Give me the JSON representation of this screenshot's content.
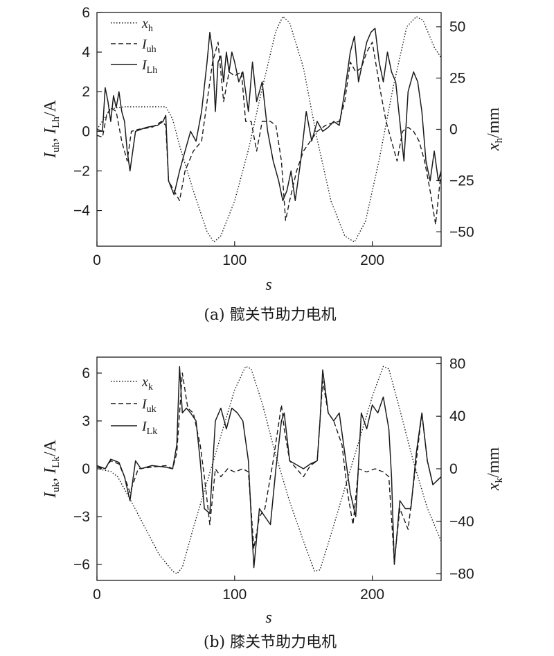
{
  "chart_data": [
    {
      "type": "line",
      "caption": "(a) 髋关节助力电机",
      "xlabel": "s",
      "ylabel_left": "I_uh, I_Lh/A",
      "ylabel_right": "x_h/mm",
      "xlim": [
        0,
        250
      ],
      "ylim_left": [
        -5.8,
        6
      ],
      "ylim_right": [
        -57,
        57
      ],
      "xticks": [
        0,
        100,
        200
      ],
      "yticks_left": [
        -4,
        -2,
        0,
        2,
        4,
        6
      ],
      "yticks_right": [
        -50,
        -25,
        0,
        25,
        50
      ],
      "legend_position": "top-left",
      "series": [
        {
          "name": "x_h",
          "axis": "right",
          "style": "dotted",
          "x": [
            0,
            5,
            10,
            20,
            30,
            40,
            50,
            55,
            60,
            70,
            80,
            85,
            90,
            100,
            110,
            120,
            130,
            135,
            140,
            150,
            160,
            170,
            180,
            187,
            195,
            205,
            215,
            225,
            232,
            237,
            245,
            250
          ],
          "y": [
            0,
            5,
            10,
            11,
            11,
            11,
            11,
            5,
            -8,
            -30,
            -50,
            -55,
            -52,
            -35,
            -10,
            20,
            48,
            55,
            52,
            30,
            -5,
            -35,
            -52,
            -55,
            -45,
            -15,
            20,
            50,
            55,
            53,
            40,
            35
          ]
        },
        {
          "name": "I_uh",
          "axis": "left",
          "style": "dashed",
          "x": [
            0,
            4,
            7,
            10,
            14,
            18,
            22,
            25,
            30,
            40,
            47,
            50,
            52,
            56,
            60,
            64,
            70,
            76,
            80,
            84,
            88,
            92,
            96,
            100,
            105,
            108,
            112,
            116,
            120,
            126,
            130,
            134,
            137,
            140,
            145,
            150,
            155,
            160,
            166,
            170,
            176,
            180,
            184,
            188,
            192,
            196,
            200,
            206,
            210,
            214,
            218,
            222,
            226,
            230,
            234,
            238,
            242,
            246,
            250
          ],
          "y": [
            -0.2,
            -0.3,
            0.8,
            1.2,
            1.0,
            -0.5,
            -1.5,
            0.0,
            0.1,
            0.2,
            0.5,
            0.3,
            -2.5,
            -3.0,
            -3.5,
            -2.0,
            -1.0,
            -0.5,
            1.5,
            3.5,
            4.5,
            1.5,
            3.0,
            2.8,
            3.0,
            0.5,
            0.5,
            -1.0,
            0.5,
            0.5,
            0.3,
            -1.5,
            -4.5,
            -3.5,
            -2.0,
            -1.0,
            -0.5,
            0.0,
            0.3,
            0.4,
            0.5,
            1.5,
            3.5,
            3.0,
            3.2,
            4.0,
            4.5,
            2.0,
            0.5,
            -0.5,
            -1.5,
            0.0,
            0.2,
            0.0,
            -0.5,
            -1.5,
            -3.0,
            -4.7,
            -2.0
          ]
        },
        {
          "name": "I_Lh",
          "axis": "left",
          "style": "solid",
          "x": [
            0,
            4,
            6,
            8,
            10,
            12,
            14,
            16,
            18,
            20,
            22,
            24,
            28,
            36,
            44,
            48,
            50,
            52,
            56,
            60,
            64,
            68,
            72,
            76,
            80,
            82,
            84,
            86,
            88,
            90,
            92,
            94,
            96,
            98,
            100,
            103,
            106,
            110,
            113,
            116,
            120,
            124,
            128,
            132,
            135,
            138,
            141,
            144,
            148,
            152,
            156,
            160,
            164,
            168,
            172,
            176,
            180,
            184,
            187,
            190,
            193,
            196,
            199,
            202,
            205,
            208,
            211,
            214,
            217,
            220,
            223,
            226,
            230,
            233,
            236,
            239,
            242,
            245,
            248,
            250
          ],
          "y": [
            0.1,
            0.0,
            2.2,
            1.5,
            0.5,
            1.8,
            1.2,
            2.0,
            1.0,
            0.5,
            -1.0,
            -2.0,
            0.0,
            0.2,
            0.3,
            0.5,
            0.8,
            -2.5,
            -3.2,
            -2.0,
            -1.0,
            0.0,
            -0.5,
            1.0,
            3.5,
            5.0,
            4.0,
            1.0,
            3.5,
            3.8,
            2.5,
            4.0,
            3.0,
            4.0,
            3.5,
            2.5,
            3.0,
            1.0,
            3.5,
            1.5,
            2.5,
            0.0,
            -1.5,
            -2.5,
            -3.5,
            -3.0,
            -2.0,
            -3.5,
            -1.5,
            1.0,
            -0.5,
            0.5,
            0.0,
            0.2,
            0.5,
            0.3,
            2.0,
            4.0,
            4.8,
            2.5,
            3.5,
            4.5,
            5.0,
            5.2,
            3.5,
            2.5,
            4.0,
            3.0,
            2.5,
            0.5,
            -1.5,
            2.0,
            3.0,
            2.5,
            1.0,
            -1.5,
            -2.5,
            -1.0,
            -2.5,
            -2.0
          ]
        }
      ]
    },
    {
      "type": "line",
      "caption": "(b) 膝关节助力电机",
      "xlabel": "s",
      "ylabel_left": "I_uk, I_Lk/A",
      "ylabel_right": "x_k/mm",
      "xlim": [
        0,
        250
      ],
      "ylim_left": [
        -7,
        7
      ],
      "ylim_right": [
        -85,
        85
      ],
      "xticks": [
        0,
        100,
        200
      ],
      "yticks_left": [
        -6,
        -3,
        0,
        3,
        6
      ],
      "yticks_right": [
        -80,
        -40,
        0,
        40,
        80
      ],
      "legend_position": "top-left",
      "series": [
        {
          "name": "x_k",
          "axis": "right",
          "style": "dotted",
          "x": [
            0,
            10,
            15,
            25,
            35,
            45,
            55,
            58,
            62,
            70,
            80,
            90,
            100,
            108,
            112,
            120,
            130,
            140,
            150,
            158,
            162,
            170,
            180,
            190,
            200,
            208,
            212,
            220,
            230,
            240,
            250
          ],
          "y": [
            0,
            -2,
            -6,
            -25,
            -45,
            -65,
            -78,
            -80,
            -75,
            -45,
            -10,
            25,
            60,
            78,
            76,
            50,
            10,
            -25,
            -55,
            -78,
            -77,
            -50,
            -15,
            20,
            55,
            78,
            76,
            45,
            5,
            -30,
            -55
          ]
        },
        {
          "name": "I_uk",
          "axis": "left",
          "style": "dashed",
          "x": [
            0,
            6,
            10,
            16,
            20,
            24,
            30,
            40,
            50,
            55,
            58,
            62,
            66,
            70,
            75,
            78,
            82,
            86,
            90,
            95,
            100,
            106,
            110,
            114,
            118,
            122,
            128,
            134,
            136,
            140,
            150,
            155,
            160,
            164,
            168,
            172,
            178,
            182,
            186,
            190,
            196,
            202,
            208,
            212,
            216,
            220,
            226,
            232,
            236,
            240,
            244,
            250
          ],
          "y": [
            0.1,
            0.0,
            0.5,
            0.3,
            -0.5,
            -1.5,
            0.0,
            0.1,
            0.2,
            0.0,
            1.0,
            6.0,
            3.8,
            3.5,
            1.5,
            -0.5,
            -3.5,
            0.0,
            -0.5,
            0.0,
            -0.2,
            0.0,
            -0.2,
            -5.0,
            -3.0,
            -2.5,
            0.5,
            4.0,
            2.5,
            0.5,
            -0.5,
            0.2,
            0.5,
            5.5,
            3.5,
            3.0,
            1.5,
            -1.5,
            -3.5,
            0.0,
            -0.2,
            0.0,
            -0.2,
            -0.5,
            -5.8,
            -2.5,
            -3.8,
            0.5,
            3.5,
            0.5,
            -1.0,
            -0.5
          ]
        },
        {
          "name": "I_Lk",
          "axis": "left",
          "style": "solid",
          "x": [
            0,
            6,
            10,
            16,
            20,
            24,
            28,
            32,
            40,
            50,
            55,
            58,
            60,
            62,
            65,
            68,
            72,
            75,
            78,
            82,
            86,
            90,
            94,
            98,
            102,
            106,
            110,
            112,
            114,
            118,
            122,
            126,
            130,
            134,
            136,
            140,
            150,
            155,
            160,
            162,
            164,
            168,
            172,
            176,
            180,
            184,
            188,
            192,
            196,
            200,
            204,
            208,
            212,
            214,
            216,
            220,
            224,
            228,
            232,
            236,
            240,
            244,
            250
          ],
          "y": [
            0.2,
            0.0,
            0.6,
            0.4,
            -0.5,
            -2.0,
            0.5,
            0.0,
            0.2,
            0.1,
            0.0,
            1.5,
            6.4,
            3.5,
            3.8,
            3.5,
            3.0,
            0.5,
            -2.5,
            -2.8,
            3.0,
            3.8,
            2.5,
            3.8,
            3.5,
            3.0,
            0.5,
            -3.0,
            -6.2,
            -2.5,
            -3.0,
            -3.5,
            0.0,
            3.0,
            3.5,
            0.5,
            0.0,
            0.3,
            0.5,
            3.0,
            6.2,
            3.5,
            3.0,
            3.5,
            1.0,
            -1.5,
            -3.0,
            3.5,
            2.5,
            4.0,
            3.5,
            4.5,
            2.5,
            -0.5,
            -6.0,
            -2.0,
            -2.5,
            -2.5,
            1.0,
            3.5,
            0.5,
            -1.0,
            -0.5
          ]
        }
      ]
    }
  ],
  "panels": [
    {
      "caption": "(a) 髋关节助力电机",
      "xlabel": "s",
      "left_label_main": "I",
      "left_label_sub1": "uh",
      "left_label_mid": ", I",
      "left_label_sub2": "Lh",
      "left_label_tail": "/A",
      "right_label_main": "x",
      "right_label_sub": "h",
      "right_label_tail": "/mm",
      "legend": [
        {
          "main": "x",
          "sub": "h"
        },
        {
          "main": "I",
          "sub": "uh"
        },
        {
          "main": "I",
          "sub": "Lh"
        }
      ]
    },
    {
      "caption": "(b) 膝关节助力电机",
      "xlabel": "s",
      "left_label_main": "I",
      "left_label_sub1": "uk",
      "left_label_mid": ", I",
      "left_label_sub2": "Lk",
      "left_label_tail": "/A",
      "right_label_main": "x",
      "right_label_sub": "k",
      "right_label_tail": "/mm",
      "legend": [
        {
          "main": "x",
          "sub": "k"
        },
        {
          "main": "I",
          "sub": "uk"
        },
        {
          "main": "I",
          "sub": "Lk"
        }
      ]
    }
  ]
}
